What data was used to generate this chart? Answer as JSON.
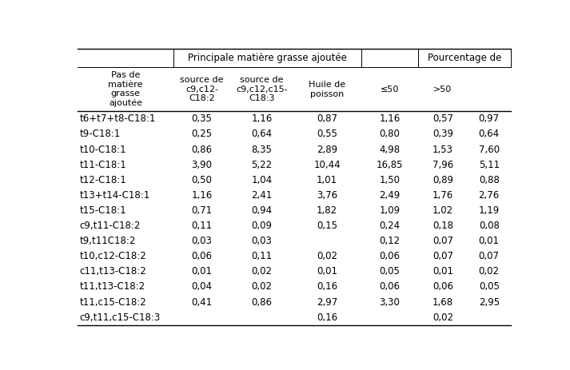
{
  "col_group1_label": "Principale matière grasse ajoutée",
  "col_group2_label": "Pourcentage de",
  "col_header_0": "Pas de\nmatière\ngrasse\najoutée",
  "col_header_1": "source de\nc9,c12-\nC18:2",
  "col_header_2": "source de\nc9,c12,c15-\nC18:3",
  "col_header_3": "Huile de\npoisson",
  "col_header_4": "≤50",
  "col_header_5": ">50",
  "rows": [
    [
      "t6+t7+t8-C18:1",
      "0,35",
      "1,16",
      "0,87",
      "1,16",
      "0,57",
      "0,97"
    ],
    [
      "t9-C18:1",
      "0,25",
      "0,64",
      "0,55",
      "0,80",
      "0,39",
      "0,64"
    ],
    [
      "t10-C18:1",
      "0,86",
      "8,35",
      "2,89",
      "4,98",
      "1,53",
      "7,60"
    ],
    [
      "t11-C18:1",
      "3,90",
      "5,22",
      "10,44",
      "16,85",
      "7,96",
      "5,11"
    ],
    [
      "t12-C18:1",
      "0,50",
      "1,04",
      "1,01",
      "1,50",
      "0,89",
      "0,88"
    ],
    [
      "t13+t14-C18:1",
      "1,16",
      "2,41",
      "3,76",
      "2,49",
      "1,76",
      "2,76"
    ],
    [
      "t15-C18:1",
      "0,71",
      "0,94",
      "1,82",
      "1,09",
      "1,02",
      "1,19"
    ],
    [
      "c9,t11-C18:2",
      "0,11",
      "0,09",
      "0,15",
      "0,24",
      "0,18",
      "0,08"
    ],
    [
      "t9,t11C18:2",
      "0,03",
      "0,03",
      "",
      "0,12",
      "0,07",
      "0,01"
    ],
    [
      "t10,c12-C18:2",
      "0,06",
      "0,11",
      "0,02",
      "0,06",
      "0,07",
      "0,07"
    ],
    [
      "c11,t13-C18:2",
      "0,01",
      "0,02",
      "0,01",
      "0,05",
      "0,01",
      "0,02"
    ],
    [
      "t11,t13-C18:2",
      "0,04",
      "0,02",
      "0,16",
      "0,06",
      "0,06",
      "0,05"
    ],
    [
      "t11,c15-C18:2",
      "0,41",
      "0,86",
      "2,97",
      "3,30",
      "1,68",
      "2,95"
    ],
    [
      "c9,t11,c15-C18:3",
      "",
      "",
      "0,16",
      "",
      "0,02",
      ""
    ]
  ],
  "background_color": "#ffffff",
  "text_color": "#000000",
  "font_size": 8.5
}
